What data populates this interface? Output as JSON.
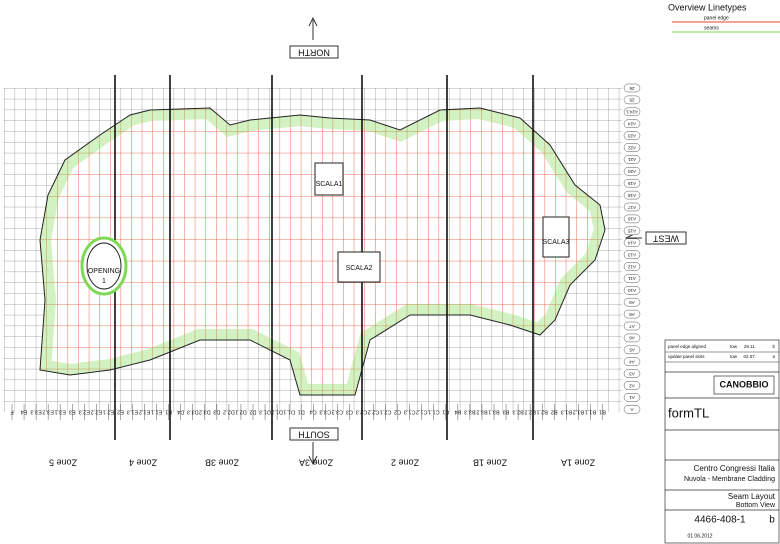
{
  "legend": {
    "title": "Overview Linetypes",
    "items": [
      {
        "label": "panel edge",
        "color": "#e8452a"
      },
      {
        "label": "seams",
        "color": "#7ed957"
      }
    ]
  },
  "compass": {
    "north": "NORTH",
    "south": "SOUTH",
    "west": "WEST"
  },
  "labels": {
    "scala1": "SCALA1",
    "scala2": "SCALA2",
    "scala3": "SCALA3",
    "opening": [
      "OPENING",
      "1"
    ]
  },
  "zones": [
    "Zone 5",
    "Zone 4",
    "Zone 3B",
    "Zone 3A",
    "Zone 2",
    "Zone 1B",
    "Zone 1A"
  ],
  "axis_bottom": [
    "F",
    "E4",
    "E3.3",
    "E3.2",
    "E3.1",
    "E3",
    "E2.3",
    "E2.2",
    "E2.1",
    "E2",
    "E1.3",
    "E1.2",
    "E1.1",
    "E1",
    "D4",
    "D3.3",
    "D3.2",
    "D3",
    "D2.2",
    "D2.1",
    "D2",
    "D1.3",
    "D1.2",
    "D1.1",
    "D1",
    "C4",
    "C3.3",
    "C3.2",
    "C3",
    "C2.3",
    "C2.2",
    "C2.1",
    "C2",
    "C1.3",
    "C1.2",
    "C1.1",
    "C1",
    "B4",
    "B3.3",
    "B3.2",
    "B3.1",
    "B3",
    "B2.3",
    "B2.2",
    "B2.1",
    "B2",
    "B1.3",
    "B1.2",
    "B1.1",
    "B1"
  ],
  "axis_right": [
    "26",
    "25",
    "A24.1",
    "A24",
    "A23",
    "A22",
    "A21",
    "A20",
    "A19",
    "A18",
    "A17",
    "A16",
    "A15",
    "A14",
    "A13",
    "A12",
    "A11",
    "A10",
    "A9",
    "A8",
    "A7",
    "A6",
    "A5",
    "A4",
    "A3",
    "A2",
    "A1",
    "A"
  ],
  "title_block": {
    "revisions": [
      [
        "panel edge aligned",
        "tow",
        "29.11.",
        "b"
      ],
      [
        "update panel slots",
        "tow",
        "02.07.",
        "a"
      ]
    ],
    "client": "CANOBBIO",
    "engineer": "formTL",
    "project": "Centro Congressi Italia",
    "subproject": "Nuvola - Membrane Cladding",
    "drawing": "Seam Layout",
    "view": "Bottom View",
    "number": "4466-408-1",
    "rev": "b",
    "date": "01.06.2012"
  }
}
